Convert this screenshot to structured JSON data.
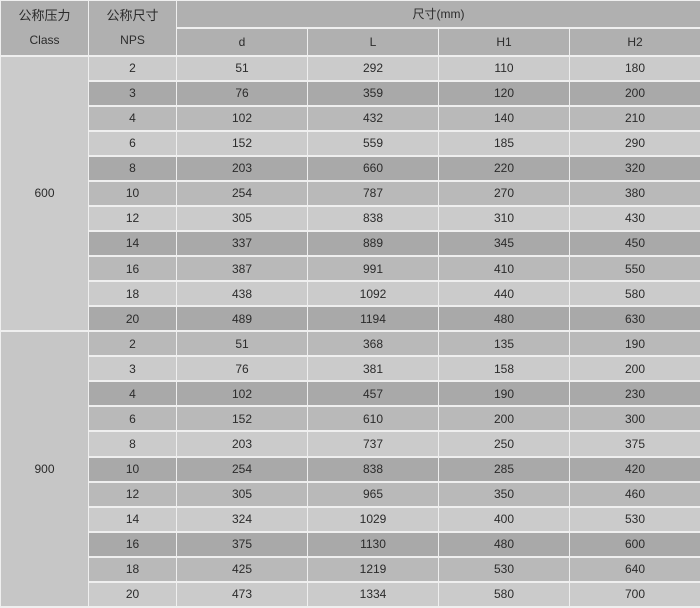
{
  "table": {
    "header": {
      "col1_line1": "公称压力",
      "col1_line2": "Class",
      "col2_line1": "公称尺寸",
      "col2_line2": "NPS",
      "size_group": "尺寸(mm)",
      "sub_columns": [
        "d",
        "L",
        "H1",
        "H2"
      ]
    },
    "sections": [
      {
        "class_label": "600",
        "rows": [
          [
            2,
            51,
            292,
            110,
            180
          ],
          [
            3,
            76,
            359,
            120,
            200
          ],
          [
            4,
            102,
            432,
            140,
            210
          ],
          [
            6,
            152,
            559,
            185,
            290
          ],
          [
            8,
            203,
            660,
            220,
            320
          ],
          [
            10,
            254,
            787,
            270,
            380
          ],
          [
            12,
            305,
            838,
            310,
            430
          ],
          [
            14,
            337,
            889,
            345,
            450
          ],
          [
            16,
            387,
            991,
            410,
            550
          ],
          [
            18,
            438,
            1092,
            440,
            580
          ],
          [
            20,
            489,
            1194,
            480,
            630
          ]
        ]
      },
      {
        "class_label": "900",
        "rows": [
          [
            2,
            51,
            368,
            135,
            190
          ],
          [
            3,
            76,
            381,
            158,
            200
          ],
          [
            4,
            102,
            457,
            190,
            230
          ],
          [
            6,
            152,
            610,
            200,
            300
          ],
          [
            8,
            203,
            737,
            250,
            375
          ],
          [
            10,
            254,
            838,
            285,
            420
          ],
          [
            12,
            305,
            965,
            350,
            460
          ],
          [
            14,
            324,
            1029,
            400,
            530
          ],
          [
            16,
            375,
            1130,
            480,
            600
          ],
          [
            18,
            425,
            1219,
            530,
            640
          ],
          [
            20,
            473,
            1334,
            580,
            700
          ]
        ]
      }
    ]
  },
  "colors": {
    "row_light": "#cbcbcb",
    "row_dark": "#a9a9a9",
    "row_medium": "#b9b9b9",
    "header_bg": "#b0b0b0",
    "class_cell_600": "#cbcbcb",
    "class_cell_900": "#c6c6c6",
    "border": "#efefef",
    "text": "#2b2b2b"
  }
}
